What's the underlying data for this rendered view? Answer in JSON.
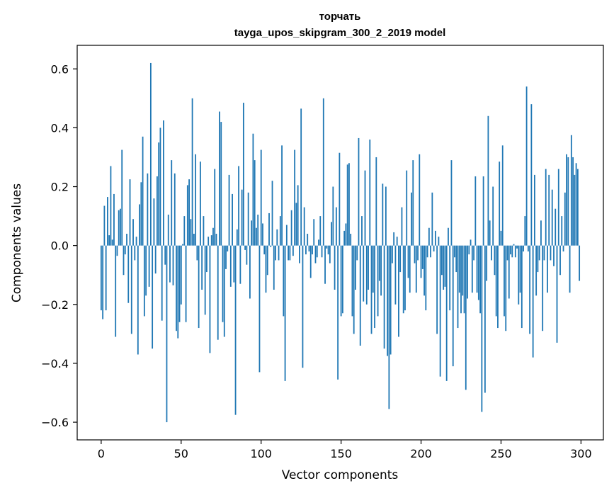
{
  "chart_data": {
    "type": "bar",
    "title": "торчать",
    "subtitle": "tayga_upos_skipgram_300_2_2019 model",
    "xlabel": "Vector components",
    "ylabel": "Components values",
    "xlim": [
      -15,
      314
    ],
    "ylim": [
      -0.66,
      0.68
    ],
    "xticks": [
      0,
      50,
      100,
      150,
      200,
      250,
      300
    ],
    "xtick_labels": [
      "0",
      "50",
      "100",
      "150",
      "200",
      "250",
      "300"
    ],
    "yticks": [
      -0.6,
      -0.4,
      -0.2,
      0.0,
      0.2,
      0.4,
      0.6
    ],
    "ytick_labels": [
      "−0.6",
      "−0.4",
      "−0.2",
      "0.0",
      "0.2",
      "0.4",
      "0.6"
    ],
    "bar_color": "#1f77b4",
    "grid": false,
    "legend": "none",
    "x": "0..299 (one bar per component index)",
    "values": [
      -0.22,
      -0.25,
      0.135,
      -0.22,
      0.165,
      0.035,
      0.27,
      0.02,
      0.175,
      -0.31,
      -0.035,
      0.12,
      0.125,
      0.325,
      -0.1,
      -0.03,
      0.04,
      -0.195,
      0.225,
      -0.3,
      0.09,
      -0.05,
      0.03,
      -0.37,
      0.14,
      0.215,
      0.37,
      -0.24,
      -0.17,
      0.245,
      -0.14,
      0.62,
      -0.35,
      0.16,
      -0.095,
      0.235,
      0.35,
      0.4,
      -0.255,
      0.425,
      -0.065,
      -0.6,
      0.105,
      -0.125,
      0.29,
      -0.135,
      0.245,
      -0.29,
      -0.315,
      -0.26,
      -0.2,
      0.005,
      0.1,
      -0.26,
      0.205,
      0.225,
      0.09,
      0.5,
      0.04,
      0.31,
      -0.05,
      -0.28,
      0.285,
      -0.15,
      0.1,
      -0.235,
      -0.09,
      0.03,
      -0.365,
      0.035,
      0.06,
      0.26,
      0.04,
      -0.32,
      0.455,
      0.42,
      -0.26,
      -0.31,
      -0.08,
      -0.02,
      0.24,
      -0.14,
      0.175,
      -0.125,
      -0.575,
      0.055,
      0.27,
      -0.13,
      0.19,
      0.485,
      -0.015,
      -0.065,
      0.18,
      -0.18,
      0.085,
      0.38,
      0.29,
      0.06,
      0.105,
      -0.43,
      0.325,
      0.075,
      -0.03,
      -0.16,
      -0.1,
      0.11,
      -0.005,
      0.22,
      -0.15,
      -0.05,
      0.055,
      -0.05,
      0.1,
      0.34,
      -0.24,
      -0.46,
      0.07,
      -0.05,
      -0.05,
      0.12,
      -0.035,
      0.325,
      0.145,
      0.205,
      -0.06,
      0.465,
      -0.415,
      0.13,
      -0.03,
      0.04,
      -0.02,
      -0.11,
      -0.03,
      0.09,
      -0.06,
      -0.04,
      0.02,
      0.1,
      -0.04,
      0.5,
      -0.13,
      -0.01,
      -0.03,
      -0.06,
      0.08,
      0.2,
      -0.15,
      0.13,
      -0.455,
      0.315,
      -0.24,
      -0.23,
      0.05,
      0.075,
      0.275,
      0.28,
      0.04,
      -0.24,
      -0.3,
      -0.15,
      -0.05,
      0.365,
      -0.34,
      0.1,
      -0.19,
      0.255,
      -0.2,
      -0.15,
      0.36,
      -0.3,
      -0.16,
      -0.28,
      0.3,
      -0.24,
      -0.12,
      -0.17,
      0.21,
      -0.35,
      0.2,
      -0.375,
      -0.555,
      -0.37,
      -0.06,
      0.045,
      -0.2,
      0.03,
      -0.31,
      -0.09,
      0.13,
      -0.23,
      -0.22,
      0.255,
      -0.11,
      -0.16,
      0.18,
      0.29,
      -0.06,
      -0.16,
      -0.05,
      0.31,
      -0.11,
      -0.08,
      -0.17,
      -0.22,
      -0.04,
      0.06,
      -0.04,
      0.18,
      -0.02,
      0.05,
      -0.3,
      0.03,
      -0.445,
      -0.1,
      -0.15,
      -0.14,
      -0.46,
      0.06,
      -0.22,
      0.29,
      -0.41,
      -0.04,
      -0.09,
      -0.28,
      -0.16,
      -0.23,
      -0.17,
      -0.23,
      -0.49,
      -0.18,
      -0.03,
      0.02,
      -0.16,
      -0.05,
      0.235,
      -0.16,
      -0.185,
      -0.23,
      -0.565,
      0.235,
      -0.5,
      -0.12,
      0.44,
      0.085,
      -0.05,
      0.2,
      -0.1,
      -0.24,
      -0.28,
      0.285,
      0.05,
      0.34,
      -0.24,
      -0.29,
      -0.05,
      -0.18,
      -0.03,
      -0.04,
      0.005,
      -0.04,
      -0.01,
      -0.2,
      -0.16,
      -0.28,
      -0.02,
      0.1,
      0.54,
      -0.02,
      -0.3,
      0.48,
      -0.38,
      0.24,
      -0.17,
      -0.09,
      -0.05,
      0.085,
      -0.29,
      -0.05,
      0.26,
      -0.16,
      0.24,
      -0.05,
      0.19,
      -0.07,
      0.125,
      -0.33,
      0.26,
      -0.1,
      0.1,
      -0.02,
      0.18,
      0.31,
      0.3,
      -0.16,
      0.375,
      0.3,
      0.24,
      0.28,
      0.26,
      -0.12
    ]
  }
}
